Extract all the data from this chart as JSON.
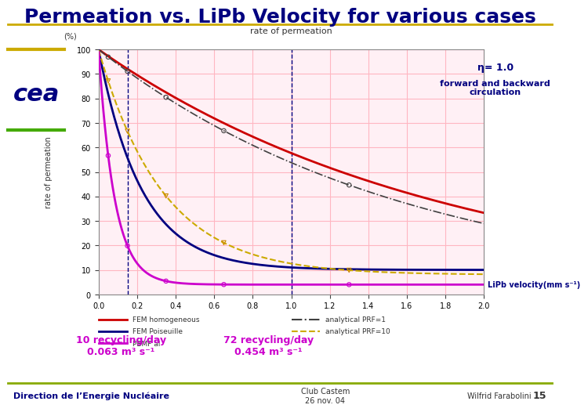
{
  "title": "Permeation vs. LiPb Velocity for various cases",
  "title_color": "#000080",
  "title_fontsize": 18,
  "ylabel": "rate of permeation",
  "ylabel_units": "(%)",
  "xlabel": "LiPb velocity (mm s⁻¹)",
  "xlim": [
    0,
    2.0
  ],
  "ylim": [
    0,
    100
  ],
  "xticks": [
    0,
    0.2,
    0.4,
    0.6,
    0.8,
    1.0,
    1.2,
    1.4,
    1.6,
    1.8,
    2.0
  ],
  "yticks": [
    0,
    10,
    20,
    30,
    40,
    50,
    60,
    70,
    80,
    90,
    100
  ],
  "vline1": 0.15,
  "vline2": 1.0,
  "vline_color": "#000080",
  "grid_color": "#ffb6c1",
  "annotation_eta": "η= 1.0",
  "annotation_circ": "forward and backward\ncirculation",
  "annotation_color": "#000080",
  "label_recycling1": "10 recycling/day\n0.063 m³ s⁻¹",
  "label_recycling2": "72 recycling/day\n0.454 m³ s⁻¹",
  "recycling_color": "#cc00cc",
  "footer_left": "Direction de l’Energie Nucléaire",
  "footer_center": "Club Castem\n26 nov. 04",
  "footer_right": "Wilfrid Farabolini",
  "footer_num": "15",
  "background_color": "#ffffff",
  "plot_bg_color": "#fff0f5",
  "curves": {
    "fem_homogeneous": {
      "color": "#cc0000",
      "label": "FEM homogeneous",
      "style": "-",
      "lw": 2.0
    },
    "fem_poiseuille": {
      "color": "#000080",
      "label": "FEM Poiseuille",
      "style": "-",
      "lw": 2.0
    },
    "pbmf": {
      "color": "#cc00cc",
      "label": "PBMF al",
      "style": "-",
      "lw": 2.0
    },
    "analytical_prf1": {
      "color": "#404040",
      "label": "analytical PRF=1",
      "style": "--",
      "lw": 1.2
    },
    "analytical_prf10": {
      "color": "#ccaa00",
      "label": "analytical PRF=10",
      "style": "--",
      "lw": 1.5
    }
  }
}
